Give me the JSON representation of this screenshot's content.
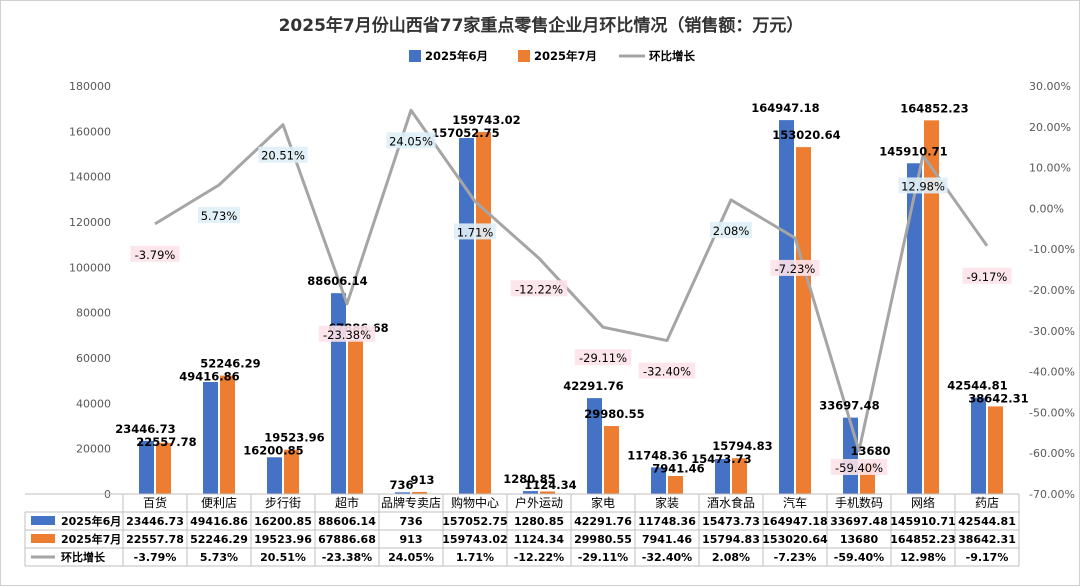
{
  "chart_data": {
    "type": "bar",
    "title": "2025年7月份山西省77家重点零售企业月环比情况（销售额：万元）",
    "categories": [
      "百货",
      "便利店",
      "步行街",
      "超市",
      "品牌专卖店",
      "购物中心",
      "户外运动",
      "家电",
      "家装",
      "酒水食品",
      "汽车",
      "手机数码",
      "网络",
      "药店"
    ],
    "series": [
      {
        "name": "2025年6月",
        "kind": "bar",
        "color": "#4472C4",
        "axis": "left",
        "values": [
          23446.73,
          49416.86,
          16200.85,
          88606.14,
          736,
          157052.75,
          1280.85,
          42291.76,
          11748.36,
          15473.73,
          164947.18,
          33697.48,
          145910.71,
          42544.81
        ],
        "labels": [
          "23446.73",
          "49416.86",
          "16200.85",
          "88606.14",
          "736",
          "157052.75",
          "1280.85",
          "42291.76",
          "11748.36",
          "15473.73",
          "164947.18",
          "33697.48",
          "145910.71",
          "42544.81"
        ]
      },
      {
        "name": "2025年7月",
        "kind": "bar",
        "color": "#ED7D31",
        "axis": "left",
        "values": [
          22557.78,
          52246.29,
          19523.96,
          67886.68,
          913,
          159743.02,
          1124.34,
          29980.55,
          7941.46,
          15794.83,
          153020.64,
          13680,
          164852.23,
          38642.31
        ],
        "labels": [
          "22557.78",
          "52246.29",
          "19523.96",
          "67886.68",
          "913",
          "159743.02",
          "1124.34",
          "29980.55",
          "7941.46",
          "15794.83",
          "153020.64",
          "13680",
          "164852.23",
          "38642.31"
        ]
      },
      {
        "name": "环比增长",
        "kind": "line",
        "color": "#A5A5A5",
        "axis": "right",
        "values": [
          -3.79,
          5.73,
          20.51,
          -23.38,
          24.05,
          1.71,
          -12.22,
          -29.11,
          -32.4,
          2.08,
          -7.23,
          -59.4,
          12.98,
          -9.17
        ],
        "labels": [
          "-3.79%",
          "5.73%",
          "20.51%",
          "-23.38%",
          "24.05%",
          "1.71%",
          "-12.22%",
          "-29.11%",
          "-32.40%",
          "2.08%",
          "-7.23%",
          "-59.40%",
          "12.98%",
          "-9.17%"
        ]
      }
    ],
    "ylim_left": [
      0,
      180000
    ],
    "left_ticks": [
      "0",
      "20000",
      "40000",
      "60000",
      "80000",
      "100000",
      "120000",
      "140000",
      "160000",
      "180000"
    ],
    "ylim_right": [
      -70,
      30
    ],
    "right_ticks": [
      "-70.00%",
      "-60.00%",
      "-50.00%",
      "-40.00%",
      "-30.00%",
      "-20.00%",
      "-10.00%",
      "0.00%",
      "10.00%",
      "20.00%",
      "30.00%"
    ],
    "legend_position": "top",
    "data_table": true,
    "grid": false
  }
}
